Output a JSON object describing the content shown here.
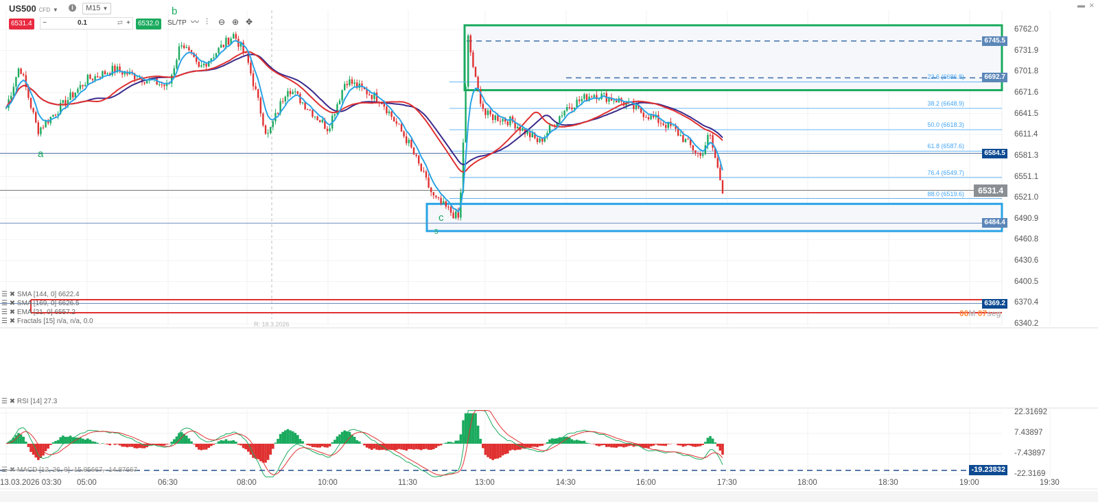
{
  "toolbar": {
    "symbol": "US500",
    "symbol_type": "CFD",
    "timeframe": "M15",
    "sell_price": "6531.4",
    "quantity": "0.1",
    "buy_price": "6532.0",
    "sltp_label": "SL/TP",
    "minus": "−",
    "plus": "+",
    "swap": "⇄"
  },
  "window_controls": {
    "maximize": "▬",
    "close": "×"
  },
  "indicators": {
    "sma144": "SMA [144, 0] 6622.4",
    "sma169": "SMA [169, 0] 6626.5",
    "ema21": "EMA [21, 0] 6557.2",
    "fractals": "Fractals [15] n/a, n/a, 0.0",
    "rsi": "RSI [14] 27.3",
    "macd": "MACD [12, 26, 9] -15.95667, -14.87667"
  },
  "price_axis": [
    "6762.0",
    "6731.9",
    "6701.8",
    "6671.6",
    "6641.5",
    "6611.4",
    "6581.3",
    "6551.1",
    "6521.0",
    "6490.9",
    "6460.8",
    "6430.6",
    "6400.5",
    "6370.4",
    "6340.2"
  ],
  "macd_axis": [
    "22.31692",
    "7.43897",
    "-7.43897",
    "-22.3169"
  ],
  "time_axis": [
    "13.03.2026 03:30",
    "05:00",
    "06:30",
    "08:00",
    "10:00",
    "11:30",
    "13:00",
    "14:30",
    "16:00",
    "17:30",
    "18:00",
    "18:30",
    "19:00",
    "19:30"
  ],
  "badges": {
    "line_6745": "6745.5",
    "line_6692": "6692.7",
    "line_6584": "6584.5",
    "current": "6531.4",
    "line_6484": "6484.4",
    "line_6369": "6369.2",
    "macd_level": "-19.23832"
  },
  "fibonacci": [
    {
      "label": "23.6 (6686.8)",
      "price": 6686.8
    },
    {
      "label": "38.2 (6648.9)",
      "price": 6648.9
    },
    {
      "label": "50.0 (6618.3)",
      "price": 6618.3
    },
    {
      "label": "61.8 (6587.6)",
      "price": 6587.6
    },
    {
      "label": "76.4 (6549.7)",
      "price": 6549.7
    },
    {
      "label": "88.0 (6519.6)",
      "price": 6519.6
    }
  ],
  "countdown": {
    "minutes": "06",
    "m_unit": "M",
    "seconds": "07",
    "s_unit": "seg"
  },
  "session_marker": "R: 18.3.2026",
  "waves": {
    "a": "a",
    "b": "b",
    "c": "c",
    "five": "5"
  },
  "colors": {
    "up": "#1aaa5e",
    "down": "#e03030",
    "ema": "#29a3e6",
    "sma144": "#e03030",
    "sma169": "#3a2a8a",
    "zone_top": "#1aaa5e",
    "zone_bottom": "#29a3e6",
    "badge": "#5b86b8",
    "badge_dark": "#0d4a91",
    "countdown": "#ff8a3d"
  },
  "chart_data": {
    "type": "candlestick",
    "symbol": "US500",
    "timeframe": "M15",
    "price_path": [
      [
        "03:30",
        6650
      ],
      [
        "03:45",
        6711
      ],
      [
        "04:05",
        6617
      ],
      [
        "05:00",
        6690
      ],
      [
        "05:30",
        6705
      ],
      [
        "06:30",
        6680
      ],
      [
        "06:45",
        6745
      ],
      [
        "07:05",
        6705
      ],
      [
        "07:45",
        6755
      ],
      [
        "08:00",
        6720
      ],
      [
        "08:30",
        6608
      ],
      [
        "09:00",
        6680
      ],
      [
        "10:00",
        6620
      ],
      [
        "10:20",
        6690
      ],
      [
        "11:00",
        6660
      ],
      [
        "11:30",
        6600
      ],
      [
        "12:00",
        6520
      ],
      [
        "12:30",
        6490
      ],
      [
        "12:40",
        6750
      ],
      [
        "12:50",
        6680
      ],
      [
        "13:00",
        6640
      ],
      [
        "13:30",
        6630
      ],
      [
        "14:00",
        6600
      ],
      [
        "14:30",
        6650
      ],
      [
        "15:00",
        6670
      ],
      [
        "15:30",
        6660
      ],
      [
        "16:00",
        6640
      ],
      [
        "16:30",
        6620
      ],
      [
        "17:00",
        6580
      ],
      [
        "17:10",
        6612
      ],
      [
        "17:25",
        6531
      ]
    ],
    "zones": [
      {
        "from": 6675,
        "to": 6768,
        "color": "green"
      },
      {
        "from": 6473,
        "to": 6512,
        "color": "blue"
      }
    ]
  }
}
